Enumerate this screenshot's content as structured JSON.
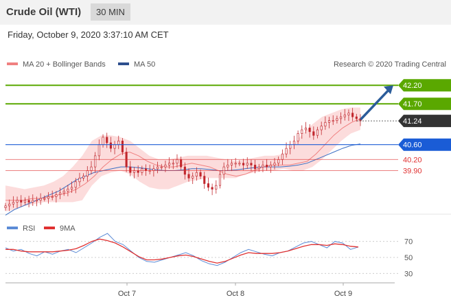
{
  "header": {
    "title": "Crude Oil (WTI)",
    "timeframe": "30 MIN"
  },
  "datetime": "Friday, October 9, 2020 3:37:10 AM CET",
  "legend": {
    "ma20_bb": "MA 20 + Bollinger Bands",
    "ma50": "MA 50",
    "credit": "Research © 2020 Trading Central"
  },
  "levels": [
    {
      "value": 42.2,
      "label": "42.20",
      "type": "target",
      "color": "#5aa800"
    },
    {
      "value": 41.7,
      "label": "41.70",
      "type": "target",
      "color": "#5aa800"
    },
    {
      "value": 41.24,
      "label": "41.24",
      "type": "last",
      "color": "#333333"
    },
    {
      "value": 40.6,
      "label": "40.60",
      "type": "pivot",
      "color": "#1a5cd6"
    },
    {
      "value": 40.2,
      "label": "40.20",
      "type": "support",
      "color": "#e03030"
    },
    {
      "value": 39.9,
      "label": "39.90",
      "type": "support",
      "color": "#e03030"
    }
  ],
  "rsi_legend": {
    "rsi": "RSI",
    "ma9": "9MA"
  },
  "rsi_axis": [
    "70",
    "50",
    "30"
  ],
  "x_labels": [
    "Oct 7",
    "Oct 8",
    "Oct 9"
  ],
  "colors": {
    "candle": "#c1272d",
    "bollinger_fill": "#fbd6d6",
    "ma20": "#f08080",
    "ma50": "#3a6fc4",
    "rsi": "#5b8bd6",
    "rsi_ma": "#e03030",
    "arrow": "#2b5c9a"
  },
  "chart_data": [
    {
      "type": "candlestick",
      "title": "Crude Oil (WTI) 30 MIN",
      "x_ticks": [
        "Oct 7",
        "Oct 8",
        "Oct 9"
      ],
      "y_ticks": [
        42.2,
        41.7,
        41.24,
        40.6,
        40.2,
        39.9
      ],
      "y_range": [
        38.8,
        42.5
      ],
      "close_path": [
        38.95,
        39.0,
        39.05,
        39.1,
        39.05,
        39.1,
        39.05,
        39.1,
        39.1,
        39.15,
        39.15,
        39.2,
        39.2,
        39.25,
        39.3,
        39.35,
        39.4,
        39.45,
        39.6,
        39.7,
        39.75,
        39.9,
        40.0,
        40.3,
        40.6,
        40.8,
        40.65,
        40.5,
        40.6,
        40.7,
        40.4,
        40.0,
        39.85,
        39.9,
        39.85,
        39.95,
        39.9,
        39.9,
        39.95,
        40.0,
        40.0,
        40.05,
        40.1,
        40.1,
        40.2,
        40.0,
        39.8,
        39.7,
        39.75,
        39.85,
        39.75,
        39.55,
        39.45,
        39.4,
        39.5,
        39.8,
        40.0,
        40.05,
        40.1,
        40.1,
        40.1,
        40.05,
        40.1,
        40.05,
        39.95,
        40.0,
        40.05,
        40.0,
        40.05,
        40.1,
        40.2,
        40.35,
        40.5,
        40.6,
        40.7,
        40.9,
        41.0,
        41.05,
        40.95,
        40.85,
        41.0,
        41.1,
        41.2,
        41.25,
        41.25,
        41.3,
        41.35,
        41.4,
        41.45,
        41.35,
        41.3,
        41.24
      ],
      "ma20": [
        39.1,
        39.1,
        39.1,
        39.15,
        39.15,
        39.2,
        39.25,
        39.3,
        39.4,
        39.55,
        39.75,
        40.0,
        40.2,
        40.35,
        40.4,
        40.3,
        40.15,
        40.05,
        40.0,
        40.0,
        40.05,
        40.1,
        40.05,
        40.0,
        39.9,
        39.8,
        39.75,
        39.8,
        39.9,
        40.0,
        40.05,
        40.05,
        40.05,
        40.1,
        40.15,
        40.35,
        40.6,
        40.85,
        41.05,
        41.2,
        41.3
      ],
      "ma50": [
        38.7,
        38.85,
        38.95,
        39.05,
        39.15,
        39.25,
        39.35,
        39.5,
        39.65,
        39.75,
        39.85,
        39.9,
        39.95,
        40.0,
        40.0,
        39.98,
        39.95,
        39.92,
        39.9,
        39.9,
        39.92,
        39.95,
        39.95,
        39.93,
        39.9,
        39.9,
        39.92,
        39.95,
        39.98,
        40.0,
        40.0,
        40.0,
        40.02,
        40.05,
        40.1,
        40.2,
        40.3,
        40.4,
        40.5,
        40.58,
        40.62
      ],
      "bollinger_upper": [
        39.5,
        39.45,
        39.4,
        39.45,
        39.5,
        39.6,
        39.75,
        40.0,
        40.3,
        40.7,
        40.85,
        40.85,
        40.8,
        40.7,
        40.5,
        40.3,
        40.2,
        40.2,
        40.25,
        40.3,
        40.3,
        40.3,
        40.25,
        40.2,
        40.15,
        40.2,
        40.25,
        40.3,
        40.3,
        40.35,
        40.6,
        40.9,
        41.15,
        41.35,
        41.45,
        41.55,
        41.6,
        41.6
      ],
      "bollinger_lower": [
        38.8,
        38.85,
        38.95,
        39.0,
        39.05,
        39.05,
        39.05,
        39.05,
        39.1,
        39.5,
        39.75,
        39.85,
        39.9,
        39.8,
        39.6,
        39.45,
        39.4,
        39.4,
        39.5,
        39.6,
        39.65,
        39.7,
        39.7,
        39.7,
        39.7,
        39.8,
        39.85,
        39.9,
        39.9,
        39.95,
        39.9,
        39.9,
        40.0,
        40.2,
        40.45,
        40.7,
        40.9,
        41.0
      ]
    },
    {
      "type": "line",
      "title": "RSI",
      "series": [
        {
          "name": "RSI",
          "values": [
            62,
            58,
            60,
            55,
            52,
            57,
            54,
            58,
            60,
            56,
            62,
            68,
            75,
            80,
            70,
            66,
            58,
            50,
            45,
            44,
            47,
            50,
            53,
            56,
            52,
            46,
            42,
            40,
            44,
            50,
            56,
            60,
            57,
            54,
            52,
            56,
            58,
            63,
            68,
            70,
            66,
            62,
            70,
            68,
            60,
            63
          ]
        },
        {
          "name": "9MA",
          "values": [
            60,
            60,
            58,
            57,
            57,
            57,
            57,
            58,
            59,
            61,
            65,
            70,
            73,
            71,
            68,
            63,
            57,
            51,
            47,
            47,
            48,
            50,
            52,
            53,
            51,
            48,
            45,
            43,
            45,
            49,
            53,
            56,
            55,
            55,
            55,
            56,
            58,
            61,
            64,
            66,
            66,
            65,
            67,
            66,
            64,
            63
          ]
        }
      ],
      "y_ticks": [
        70,
        50,
        30
      ],
      "y_range": [
        20,
        80
      ]
    }
  ]
}
